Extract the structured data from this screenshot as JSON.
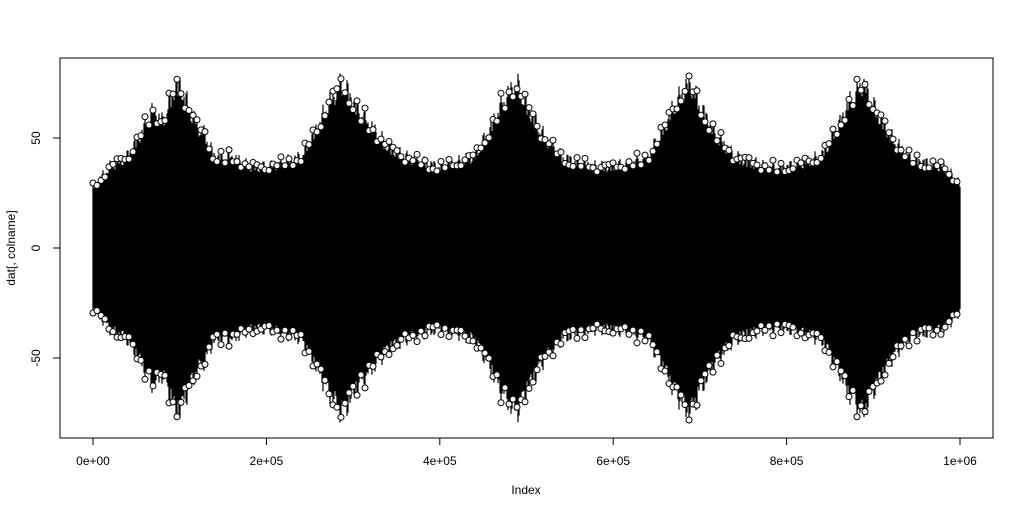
{
  "chart_data": {
    "type": "scatter",
    "title": "",
    "xlabel": "Index",
    "ylabel": "dat[, colname]",
    "xlim": [
      0,
      1000000
    ],
    "ylim": [
      -80,
      80
    ],
    "x_ticks": [
      0,
      200000,
      400000,
      600000,
      800000,
      1000000
    ],
    "x_tick_labels": [
      "0e+00",
      "2e+05",
      "4e+05",
      "6e+05",
      "8e+05",
      "1e+06"
    ],
    "y_ticks": [
      -50,
      0,
      50
    ],
    "y_tick_labels": [
      "-50",
      "0",
      "50"
    ],
    "marker": "open-circle",
    "color": "#000000",
    "grid": false,
    "n_points": 1000000,
    "envelope": {
      "x": [
        0,
        20000,
        40000,
        60000,
        70000,
        80000,
        90000,
        95000,
        100000,
        110000,
        120000,
        130000,
        140000,
        160000,
        180000,
        200000,
        220000,
        240000,
        260000,
        270000,
        280000,
        285000,
        290000,
        300000,
        320000,
        340000,
        360000,
        380000,
        400000,
        420000,
        440000,
        460000,
        470000,
        480000,
        485000,
        490000,
        500000,
        520000,
        540000,
        560000,
        580000,
        600000,
        620000,
        640000,
        660000,
        670000,
        680000,
        685000,
        690000,
        700000,
        720000,
        740000,
        760000,
        780000,
        800000,
        820000,
        840000,
        860000,
        870000,
        880000,
        885000,
        890000,
        900000,
        920000,
        940000,
        960000,
        980000,
        1000000
      ],
      "amplitude": [
        30,
        40,
        45,
        60,
        68,
        62,
        74,
        80,
        80,
        70,
        60,
        55,
        45,
        45,
        40,
        40,
        42,
        45,
        60,
        70,
        76,
        80,
        80,
        72,
        60,
        50,
        45,
        42,
        40,
        42,
        45,
        60,
        70,
        76,
        80,
        80,
        70,
        55,
        45,
        42,
        40,
        40,
        42,
        45,
        60,
        70,
        76,
        80,
        80,
        70,
        55,
        45,
        42,
        40,
        40,
        42,
        45,
        60,
        70,
        76,
        80,
        80,
        70,
        55,
        45,
        42,
        40,
        32
      ]
    }
  }
}
